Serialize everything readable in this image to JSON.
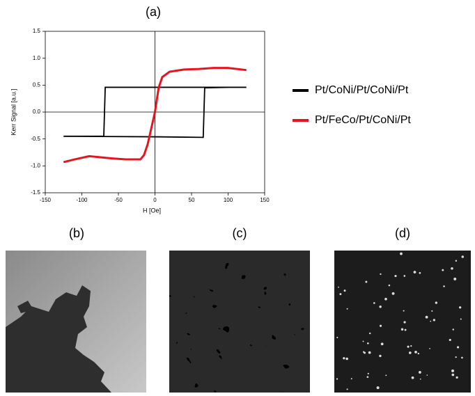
{
  "chart_data": {
    "type": "line",
    "title": "(a)",
    "x_label": "H [Oe]",
    "y_label": "Kerr Signal [a.u.]",
    "xlim": [
      -150,
      150
    ],
    "xticks": [
      -150,
      -100,
      -50,
      0,
      50,
      100,
      150
    ],
    "ylim": [
      -1.5,
      1.5
    ],
    "yticks": [
      -1.5,
      {
        "value": -1,
        "label": "-1.0"
      },
      -0.5,
      {
        "value": 0,
        "label": "0.0"
      },
      0.5,
      {
        "value": 1,
        "label": "1.0"
      },
      1.5
    ],
    "legend": "right",
    "series": [
      {
        "name": "Pt/CoNi/Pt/CoNi/Pt",
        "color": "#000000",
        "x": [
          -125,
          0,
          66,
          67,
          68,
          100,
          125,
          100,
          0,
          -68,
          -69,
          -70,
          -100,
          -125
        ],
        "values": [
          -0.45,
          -0.46,
          -0.47,
          0,
          0.45,
          0.46,
          0.46,
          0.46,
          0.46,
          0.46,
          0,
          -0.45,
          -0.45,
          -0.45
        ]
      },
      {
        "name": "Pt/FeCo/Pt/CoNi/Pt",
        "color": "#e8141c",
        "x": [
          -125,
          -110,
          -90,
          -60,
          -40,
          -20,
          -15,
          -10,
          -5,
          0,
          5,
          10,
          20,
          40,
          60,
          80,
          100,
          125
        ],
        "values": [
          -0.93,
          -0.88,
          -0.82,
          -0.86,
          -0.88,
          -0.88,
          -0.8,
          -0.6,
          -0.3,
          0.0,
          0.45,
          0.65,
          0.75,
          0.79,
          0.8,
          0.82,
          0.82,
          0.78
        ]
      }
    ]
  },
  "panels": [
    {
      "label": "(b)"
    },
    {
      "label": "(c)"
    },
    {
      "label": "(d)"
    }
  ]
}
